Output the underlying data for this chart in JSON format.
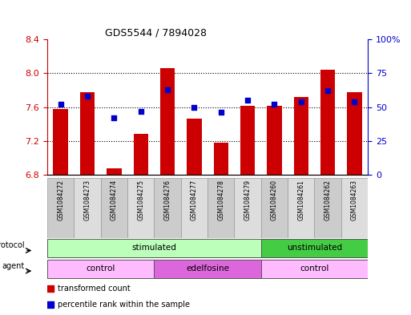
{
  "title": "GDS5544 / 7894028",
  "samples": [
    "GSM1084272",
    "GSM1084273",
    "GSM1084274",
    "GSM1084275",
    "GSM1084276",
    "GSM1084277",
    "GSM1084278",
    "GSM1084279",
    "GSM1084260",
    "GSM1084261",
    "GSM1084262",
    "GSM1084263"
  ],
  "red_values": [
    7.58,
    7.78,
    6.88,
    7.28,
    8.06,
    7.46,
    7.18,
    7.62,
    7.62,
    7.72,
    8.04,
    7.78
  ],
  "blue_values": [
    52,
    58,
    42,
    47,
    63,
    50,
    46,
    55,
    52,
    54,
    62,
    54
  ],
  "ylim_left": [
    6.8,
    8.4
  ],
  "ylim_right": [
    0,
    100
  ],
  "yticks_left": [
    6.8,
    7.2,
    7.6,
    8.0,
    8.4
  ],
  "yticks_right": [
    0,
    25,
    50,
    75,
    100
  ],
  "ytick_labels_right": [
    "0",
    "25",
    "50",
    "75",
    "100%"
  ],
  "bar_color": "#cc0000",
  "dot_color": "#0000cc",
  "bar_width": 0.55,
  "bar_bottom": 6.8,
  "protocol_labels": [
    {
      "label": "stimulated",
      "start": 0,
      "end": 8,
      "color": "#bbffbb"
    },
    {
      "label": "unstimulated",
      "start": 8,
      "end": 12,
      "color": "#44cc44"
    }
  ],
  "agent_labels": [
    {
      "label": "control",
      "start": 0,
      "end": 4,
      "color": "#ffbbff"
    },
    {
      "label": "edelfosine",
      "start": 4,
      "end": 8,
      "color": "#dd66dd"
    },
    {
      "label": "control",
      "start": 8,
      "end": 12,
      "color": "#ffbbff"
    }
  ],
  "legend_red_label": "transformed count",
  "legend_blue_label": "percentile rank within the sample",
  "background_color": "#ffffff",
  "tick_label_color_left": "#cc0000",
  "tick_label_color_right": "#0000cc"
}
